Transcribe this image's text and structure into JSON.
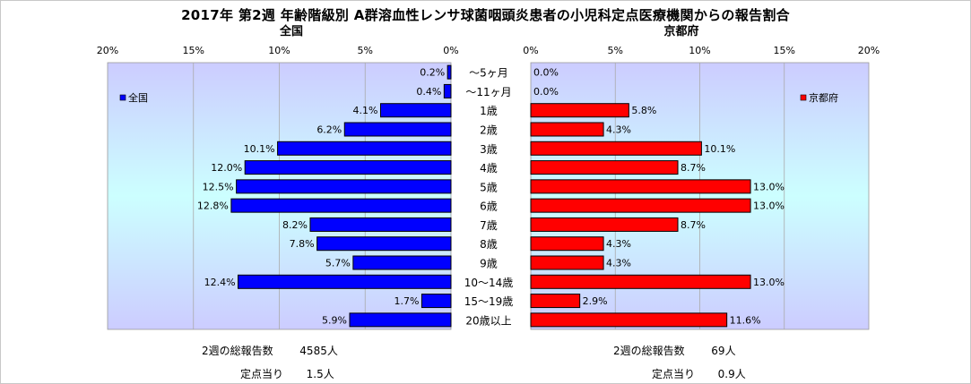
{
  "title": "2017年 第2週 年齢階級別 A群溶血性レンサ球菌咽頭炎患者の小児科定点医療機関からの報告割合",
  "chart_data": [
    {
      "type": "bar",
      "orientation": "horizontal",
      "title": "全国",
      "legend": "全国",
      "legend_position": "top-left",
      "xlim": [
        0,
        20
      ],
      "x_ticks": [
        "20%",
        "15%",
        "10%",
        "5%",
        "0%"
      ],
      "categories": [
        "〜5ヶ月",
        "〜11ヶ月",
        "1歳",
        "2歳",
        "3歳",
        "4歳",
        "5歳",
        "6歳",
        "7歳",
        "8歳",
        "9歳",
        "10〜14歳",
        "15〜19歳",
        "20歳以上"
      ],
      "values": [
        0.2,
        0.4,
        4.1,
        6.2,
        10.1,
        12.0,
        12.5,
        12.8,
        8.2,
        7.8,
        5.7,
        12.4,
        1.7,
        5.9
      ],
      "labels": [
        "0.2%",
        "0.4%",
        "4.1%",
        "6.2%",
        "10.1%",
        "12.0%",
        "12.5%",
        "12.8%",
        "8.2%",
        "7.8%",
        "5.7%",
        "12.4%",
        "1.7%",
        "5.9%"
      ],
      "color": "#0000ff",
      "grid": true
    },
    {
      "type": "bar",
      "orientation": "horizontal",
      "title": "京都府",
      "legend": "京都府",
      "legend_position": "top-right",
      "xlim": [
        0,
        20
      ],
      "x_ticks": [
        "0%",
        "5%",
        "10%",
        "15%",
        "20%"
      ],
      "categories": [
        "〜5ヶ月",
        "〜11ヶ月",
        "1歳",
        "2歳",
        "3歳",
        "4歳",
        "5歳",
        "6歳",
        "7歳",
        "8歳",
        "9歳",
        "10〜14歳",
        "15〜19歳",
        "20歳以上"
      ],
      "values": [
        0.0,
        0.0,
        5.8,
        4.3,
        10.1,
        8.7,
        13.0,
        13.0,
        8.7,
        4.3,
        4.3,
        13.0,
        2.9,
        11.6
      ],
      "labels": [
        "0.0%",
        "0.0%",
        "5.8%",
        "4.3%",
        "10.1%",
        "8.7%",
        "13.0%",
        "13.0%",
        "8.7%",
        "4.3%",
        "4.3%",
        "13.0%",
        "2.9%",
        "11.6%"
      ],
      "color": "#ff0000",
      "grid": true
    }
  ],
  "footer": {
    "national": {
      "total_label": "2週の総報告数",
      "total_value": "4585人",
      "per_label": "定点当り",
      "per_value": "1.5人"
    },
    "kyoto": {
      "total_label": "2週の総報告数",
      "total_value": "69人",
      "per_label": "定点当り",
      "per_value": "0.9人"
    }
  },
  "colors": {
    "national_bar": "#0000ff",
    "kyoto_bar": "#ff0000",
    "plot_top": "#ccccff",
    "plot_mid": "#ccffff"
  }
}
